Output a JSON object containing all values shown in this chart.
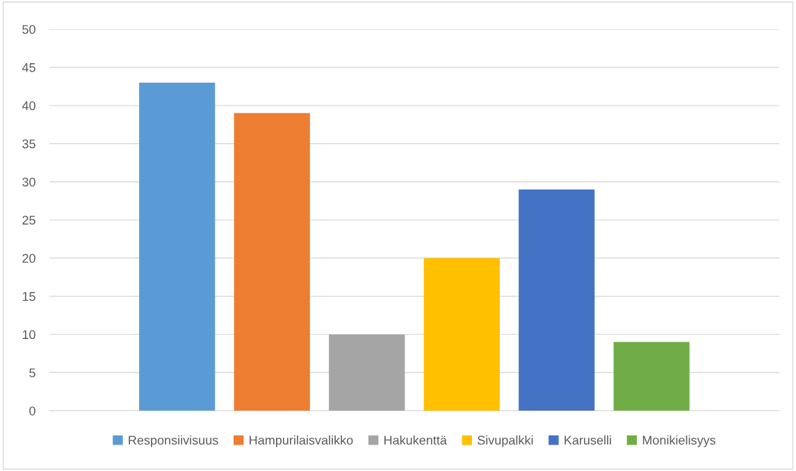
{
  "chart_data": {
    "type": "bar",
    "categories": [
      null
    ],
    "series": [
      {
        "name": "Responsiivisuus",
        "color": "#5b9bd5",
        "values": [
          43
        ]
      },
      {
        "name": "Hampurilaisvalikko",
        "color": "#ed7d31",
        "values": [
          39
        ]
      },
      {
        "name": "Hakukenttä",
        "color": "#a5a5a5",
        "values": [
          10
        ]
      },
      {
        "name": "Sivupalkki",
        "color": "#ffc000",
        "values": [
          20
        ]
      },
      {
        "name": "Karuselli",
        "color": "#4472c4",
        "values": [
          29
        ]
      },
      {
        "name": "Monikielisyys",
        "color": "#70ad47",
        "values": [
          9
        ]
      }
    ],
    "ylim": [
      0,
      50
    ],
    "yticks": [
      0,
      5,
      10,
      15,
      20,
      25,
      30,
      35,
      40,
      45,
      50
    ],
    "grid": "y",
    "legend": "bottom"
  }
}
